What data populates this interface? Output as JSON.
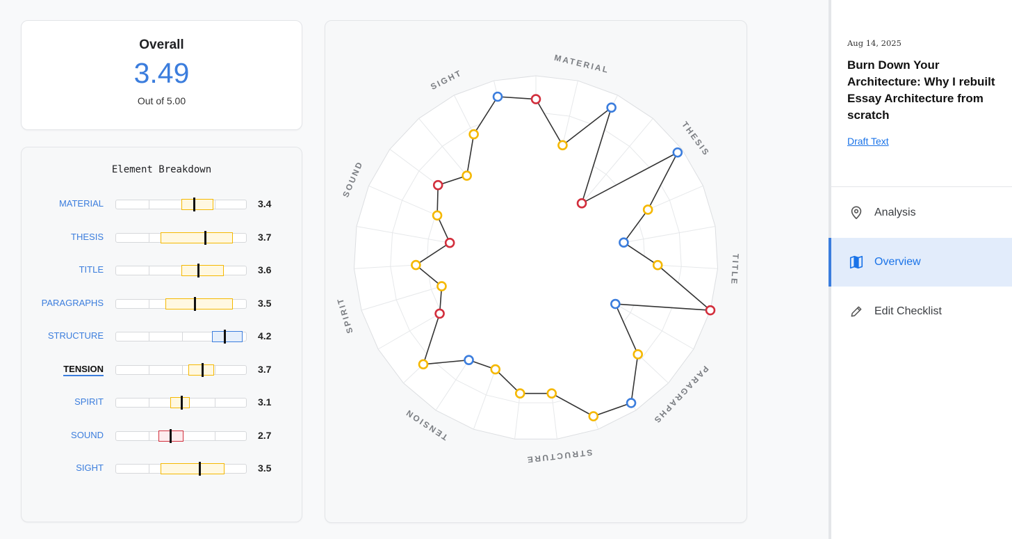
{
  "overall": {
    "title": "Overall",
    "score": "3.49",
    "subtitle": "Out of 5.00"
  },
  "breakdown": {
    "title": "Element Breakdown",
    "rows": [
      {
        "label": "MATERIAL",
        "value": "3.4",
        "q1": 2.98,
        "q3": 3.96,
        "median": 3.38,
        "color": "#f5b800",
        "fill": "#fff8e1",
        "active": false
      },
      {
        "label": "THESIS",
        "value": "3.7",
        "q1": 2.35,
        "q3": 4.55,
        "median": 3.7,
        "color": "#f5b800",
        "fill": "#fff8e1",
        "active": false
      },
      {
        "label": "TITLE",
        "value": "3.6",
        "q1": 2.98,
        "q3": 4.28,
        "median": 3.5,
        "color": "#f5b800",
        "fill": "#fff8e1",
        "active": false
      },
      {
        "label": "PARAGRAPHS",
        "value": "3.5",
        "q1": 2.5,
        "q3": 4.55,
        "median": 3.4,
        "color": "#f5b800",
        "fill": "#fff8e1",
        "active": false
      },
      {
        "label": "STRUCTURE",
        "value": "4.2",
        "q1": 3.92,
        "q3": 4.85,
        "median": 4.3,
        "color": "#3b7ddd",
        "fill": "#e6effb",
        "active": false
      },
      {
        "label": "TENSION",
        "value": "3.7",
        "q1": 3.2,
        "q3": 3.98,
        "median": 3.62,
        "color": "#f5b800",
        "fill": "#fff8e1",
        "active": true
      },
      {
        "label": "SPIRIT",
        "value": "3.1",
        "q1": 2.65,
        "q3": 3.25,
        "median": 2.98,
        "color": "#f5b800",
        "fill": "#fff8e1",
        "active": false
      },
      {
        "label": "SOUND",
        "value": "2.7",
        "q1": 2.3,
        "q3": 3.05,
        "median": 2.65,
        "color": "#d22e3c",
        "fill": "#fdecee",
        "active": false
      },
      {
        "label": "SIGHT",
        "value": "3.5",
        "q1": 2.35,
        "q3": 4.3,
        "median": 3.55,
        "color": "#f5b800",
        "fill": "#fff8e1",
        "active": false
      }
    ]
  },
  "radar": {
    "axes": [
      "MATERIAL",
      "THESIS",
      "TITLE",
      "PARAGRAPHS",
      "STRUCTURE",
      "TENSION",
      "SPIRIT",
      "SOUND",
      "SIGHT"
    ],
    "spoke_count": 27,
    "max": 5,
    "point_values": [
      4.36,
      3.18,
      4.62,
      1.96,
      4.85,
      3.35,
      2.45,
      3.35,
      5.0,
      2.52,
      3.85,
      4.76,
      4.62,
      3.74,
      3.74,
      3.25,
      3.35,
      4.25,
      3.05,
      2.7,
      3.3,
      2.4,
      2.95,
      3.35,
      2.95,
      3.8,
      4.55
    ],
    "point_colors": [
      "#d22e3c",
      "#f5b800",
      "#3b7ddd",
      "#d22e3c",
      "#3b7ddd",
      "#f5b800",
      "#3b7ddd",
      "#f5b800",
      "#d22e3c",
      "#3b7ddd",
      "#f5b800",
      "#3b7ddd",
      "#f5b800",
      "#f5b800",
      "#f5b800",
      "#f5b800",
      "#3b7ddd",
      "#f5b800",
      "#d22e3c",
      "#f5b800",
      "#f5b800",
      "#d22e3c",
      "#f5b800",
      "#d22e3c",
      "#f5b800",
      "#f5b800",
      "#3b7ddd"
    ]
  },
  "sidebar": {
    "date": "Aug 14, 2025",
    "title": "Burn Down Your Architecture: Why I rebuilt Essay Architecture from scratch",
    "draft_link": "Draft Text",
    "nav": [
      {
        "label": "Analysis",
        "icon": "map-pin-icon",
        "active": false
      },
      {
        "label": "Overview",
        "icon": "map-icon",
        "active": true
      },
      {
        "label": "Edit Checklist",
        "icon": "pencil-icon",
        "active": false
      }
    ]
  }
}
